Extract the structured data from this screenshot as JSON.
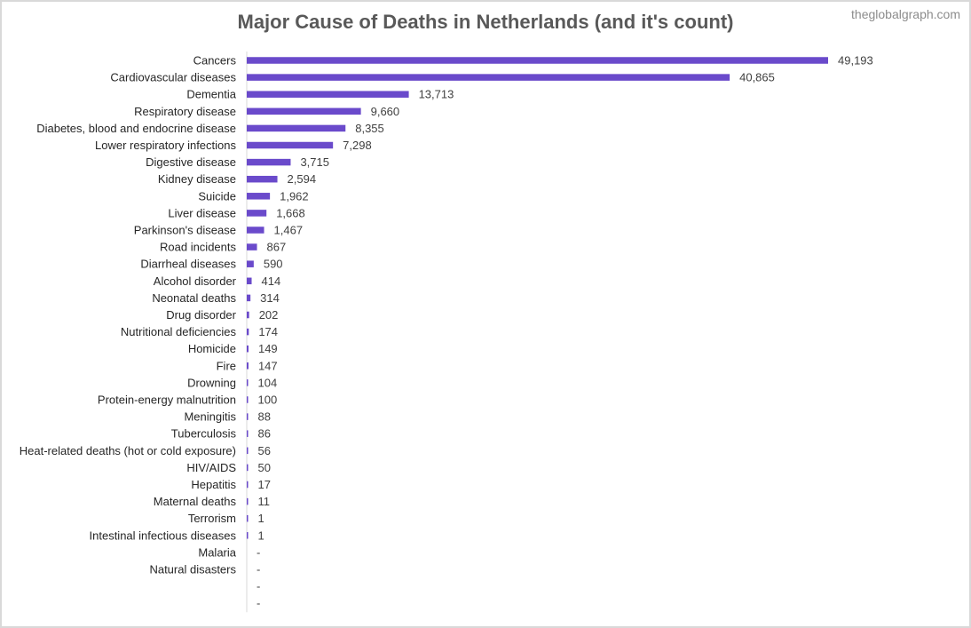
{
  "watermark": "theglobalgraph.com",
  "colors": {
    "bar": "#6a4acb",
    "axis": "#d9d9d9"
  },
  "chart_data": {
    "type": "bar",
    "orientation": "horizontal",
    "title": "Major Cause of Deaths in Netherlands (and it's count)",
    "categories": [
      "Cancers",
      "Cardiovascular diseases",
      "Dementia",
      "Respiratory disease",
      "Diabetes, blood and endocrine disease",
      "Lower respiratory infections",
      "Digestive disease",
      "Kidney disease",
      "Suicide",
      "Liver disease",
      "Parkinson's disease",
      "Road incidents",
      "Diarrheal diseases",
      "Alcohol disorder",
      "Neonatal deaths",
      "Drug disorder",
      "Nutritional deficiencies",
      "Homicide",
      "Fire",
      "Drowning",
      "Protein-energy malnutrition",
      "Meningitis",
      "Tuberculosis",
      "Heat-related deaths (hot or cold exposure)",
      "HIV/AIDS",
      "Hepatitis",
      "Maternal deaths",
      "Terrorism",
      "Intestinal infectious diseases",
      "Malaria",
      "Natural disasters",
      "",
      ""
    ],
    "values": [
      49193,
      40865,
      13713,
      9660,
      8355,
      7298,
      3715,
      2594,
      1962,
      1668,
      1467,
      867,
      590,
      414,
      314,
      202,
      174,
      149,
      147,
      104,
      100,
      88,
      86,
      56,
      50,
      17,
      11,
      1,
      1,
      null,
      null,
      null,
      null
    ],
    "labels": [
      "49,193",
      "40,865",
      "13,713",
      "9,660",
      "8,355",
      "7,298",
      "3,715",
      "2,594",
      "1,962",
      "1,668",
      "1,467",
      "867",
      "590",
      "414",
      "314",
      "202",
      "174",
      "149",
      "147",
      "104",
      "100",
      "88",
      "86",
      "56",
      "50",
      "17",
      "11",
      "1",
      "1",
      "-",
      "-",
      "-",
      "-"
    ],
    "xlim": [
      0,
      49193
    ],
    "legend": "none",
    "grid": false
  }
}
